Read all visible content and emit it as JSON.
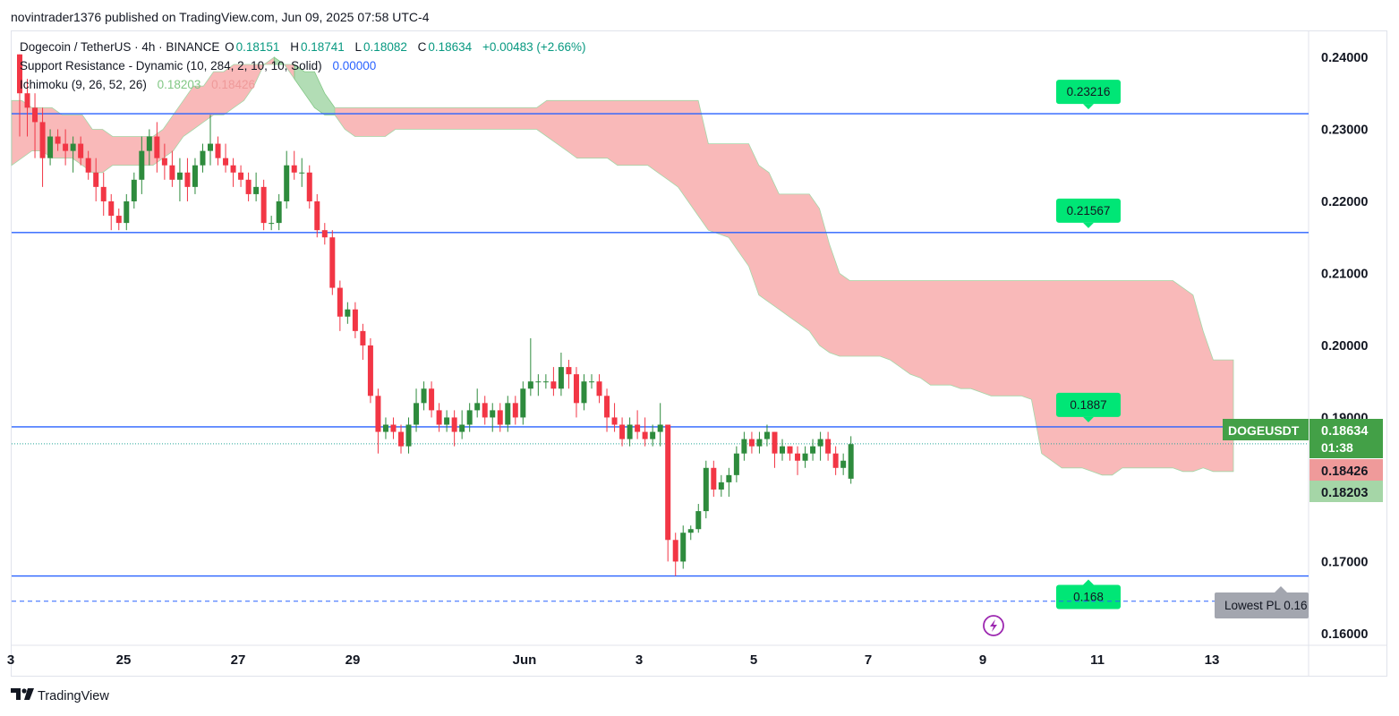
{
  "header": {
    "published_line": "novintrader1376 published on TradingView.com, Jun 09, 2025 07:58 UTC-4"
  },
  "legend": {
    "symbol_line": {
      "name": "Dogecoin / TetherUS · 4h · BINANCE",
      "o_label": "O",
      "o_value": "0.18151",
      "h_label": "H",
      "h_value": "0.18741",
      "l_label": "L",
      "l_value": "0.18082",
      "c_label": "C",
      "c_value": "0.18634",
      "change": "+0.00483 (+2.66%)"
    },
    "indicator1": {
      "name": "Support Resistance - Dynamic (10, 284, 2, 10, 10, Solid)",
      "value": "0.00000"
    },
    "indicator2": {
      "name": "Ichimoku (9, 26, 52, 26)",
      "value_a": "0.18203",
      "value_b": "0.18426"
    }
  },
  "footer": {
    "brand": "TradingView"
  },
  "colors": {
    "up": "#089981",
    "up_candle": "#26a69a",
    "down": "#f23645",
    "level_line": "#2962ff",
    "cloud_bear": "#f7a8a8",
    "cloud_bull": "#9fd4a3",
    "level_tag": "#00e676",
    "price_tag": "#43a047"
  },
  "chart_data": {
    "type": "candlestick",
    "symbol": "DOGEUSDT",
    "timeframe": "4h",
    "y_axis": {
      "ticks": [
        "0.24000",
        "0.23000",
        "0.22000",
        "0.21000",
        "0.20000",
        "0.19000",
        "0.17000",
        "0.16000"
      ],
      "ylim": [
        0.1585,
        0.2436
      ]
    },
    "x_axis": {
      "tick_labels": [
        "3",
        "25",
        "27",
        "29",
        "Jun",
        "3",
        "5",
        "7",
        "9",
        "11",
        "13"
      ]
    },
    "levels": [
      {
        "label": "0.23216",
        "value": 0.23216
      },
      {
        "label": "0.21567",
        "value": 0.21567
      },
      {
        "label": "0.1887",
        "value": 0.1887
      },
      {
        "label": "0.168",
        "value": 0.168
      }
    ],
    "dashed_level": {
      "value": 0.1645,
      "label": "Lowest PL 0.16"
    },
    "price_scale_tags": [
      {
        "label": "DOGEUSDT",
        "value": "0.18634",
        "countdown": "01:38"
      },
      {
        "label": "",
        "value": "0.18426"
      },
      {
        "label": "",
        "value": "0.18203"
      }
    ],
    "candles": [
      [
        0.2404,
        0.2404,
        0.229,
        0.235
      ],
      [
        0.235,
        0.237,
        0.229,
        0.233
      ],
      [
        0.233,
        0.235,
        0.226,
        0.231
      ],
      [
        0.231,
        0.233,
        0.222,
        0.226
      ],
      [
        0.226,
        0.23,
        0.225,
        0.229
      ],
      [
        0.229,
        0.23,
        0.227,
        0.228
      ],
      [
        0.228,
        0.23,
        0.225,
        0.227
      ],
      [
        0.227,
        0.229,
        0.224,
        0.228
      ],
      [
        0.228,
        0.229,
        0.225,
        0.226
      ],
      [
        0.226,
        0.227,
        0.223,
        0.224
      ],
      [
        0.224,
        0.226,
        0.22,
        0.222
      ],
      [
        0.222,
        0.224,
        0.218,
        0.22
      ],
      [
        0.22,
        0.221,
        0.216,
        0.218
      ],
      [
        0.218,
        0.219,
        0.216,
        0.217
      ],
      [
        0.217,
        0.221,
        0.216,
        0.22
      ],
      [
        0.22,
        0.224,
        0.219,
        0.223
      ],
      [
        0.223,
        0.229,
        0.221,
        0.227
      ],
      [
        0.227,
        0.23,
        0.225,
        0.229
      ],
      [
        0.229,
        0.231,
        0.224,
        0.226
      ],
      [
        0.226,
        0.228,
        0.223,
        0.225
      ],
      [
        0.225,
        0.227,
        0.222,
        0.223
      ],
      [
        0.223,
        0.226,
        0.22,
        0.224
      ],
      [
        0.224,
        0.226,
        0.22,
        0.222
      ],
      [
        0.222,
        0.226,
        0.221,
        0.225
      ],
      [
        0.225,
        0.228,
        0.224,
        0.227
      ],
      [
        0.227,
        0.232,
        0.225,
        0.228
      ],
      [
        0.228,
        0.229,
        0.225,
        0.226
      ],
      [
        0.226,
        0.228,
        0.224,
        0.225
      ],
      [
        0.225,
        0.226,
        0.222,
        0.224
      ],
      [
        0.224,
        0.225,
        0.222,
        0.223
      ],
      [
        0.223,
        0.224,
        0.22,
        0.221
      ],
      [
        0.221,
        0.224,
        0.22,
        0.222
      ],
      [
        0.222,
        0.223,
        0.216,
        0.217
      ],
      [
        0.217,
        0.218,
        0.216,
        0.217
      ],
      [
        0.217,
        0.221,
        0.216,
        0.22
      ],
      [
        0.22,
        0.227,
        0.219,
        0.225
      ],
      [
        0.225,
        0.227,
        0.223,
        0.224
      ],
      [
        0.224,
        0.226,
        0.222,
        0.224
      ],
      [
        0.224,
        0.225,
        0.219,
        0.22
      ],
      [
        0.22,
        0.221,
        0.215,
        0.216
      ],
      [
        0.216,
        0.217,
        0.214,
        0.215
      ],
      [
        0.215,
        0.216,
        0.207,
        0.208
      ],
      [
        0.208,
        0.209,
        0.202,
        0.204
      ],
      [
        0.204,
        0.206,
        0.203,
        0.205
      ],
      [
        0.205,
        0.206,
        0.201,
        0.202
      ],
      [
        0.202,
        0.203,
        0.198,
        0.2
      ],
      [
        0.2,
        0.201,
        0.192,
        0.193
      ],
      [
        0.193,
        0.194,
        0.185,
        0.188
      ],
      [
        0.188,
        0.19,
        0.187,
        0.189
      ],
      [
        0.189,
        0.19,
        0.187,
        0.188
      ],
      [
        0.188,
        0.189,
        0.185,
        0.186
      ],
      [
        0.186,
        0.19,
        0.185,
        0.189
      ],
      [
        0.189,
        0.194,
        0.188,
        0.192
      ],
      [
        0.192,
        0.195,
        0.191,
        0.194
      ],
      [
        0.194,
        0.195,
        0.19,
        0.191
      ],
      [
        0.191,
        0.192,
        0.188,
        0.189
      ],
      [
        0.189,
        0.191,
        0.188,
        0.19
      ],
      [
        0.19,
        0.191,
        0.186,
        0.188
      ],
      [
        0.188,
        0.191,
        0.187,
        0.189
      ],
      [
        0.189,
        0.192,
        0.188,
        0.191
      ],
      [
        0.191,
        0.194,
        0.19,
        0.192
      ],
      [
        0.192,
        0.193,
        0.189,
        0.19
      ],
      [
        0.19,
        0.192,
        0.188,
        0.191
      ],
      [
        0.191,
        0.192,
        0.188,
        0.189
      ],
      [
        0.189,
        0.193,
        0.188,
        0.192
      ],
      [
        0.192,
        0.193,
        0.189,
        0.19
      ],
      [
        0.19,
        0.195,
        0.189,
        0.194
      ],
      [
        0.194,
        0.201,
        0.193,
        0.195
      ],
      [
        0.195,
        0.196,
        0.193,
        0.195
      ],
      [
        0.195,
        0.196,
        0.194,
        0.195
      ],
      [
        0.195,
        0.197,
        0.193,
        0.194
      ],
      [
        0.194,
        0.199,
        0.193,
        0.197
      ],
      [
        0.197,
        0.198,
        0.194,
        0.196
      ],
      [
        0.196,
        0.197,
        0.19,
        0.192
      ],
      [
        0.192,
        0.196,
        0.191,
        0.195
      ],
      [
        0.195,
        0.196,
        0.194,
        0.195
      ],
      [
        0.195,
        0.196,
        0.192,
        0.193
      ],
      [
        0.193,
        0.194,
        0.188,
        0.19
      ],
      [
        0.19,
        0.192,
        0.188,
        0.189
      ],
      [
        0.189,
        0.19,
        0.186,
        0.187
      ],
      [
        0.187,
        0.19,
        0.186,
        0.189
      ],
      [
        0.189,
        0.191,
        0.187,
        0.188
      ],
      [
        0.188,
        0.19,
        0.186,
        0.187
      ],
      [
        0.187,
        0.189,
        0.186,
        0.188
      ],
      [
        0.188,
        0.192,
        0.186,
        0.189
      ],
      [
        0.189,
        0.189,
        0.17,
        0.173
      ],
      [
        0.173,
        0.174,
        0.168,
        0.17
      ],
      [
        0.17,
        0.175,
        0.169,
        0.174
      ],
      [
        0.174,
        0.175,
        0.173,
        0.1745
      ],
      [
        0.1745,
        0.178,
        0.174,
        0.177
      ],
      [
        0.177,
        0.184,
        0.176,
        0.183
      ],
      [
        0.183,
        0.184,
        0.179,
        0.18
      ],
      [
        0.18,
        0.182,
        0.179,
        0.181
      ],
      [
        0.181,
        0.183,
        0.179,
        0.182
      ],
      [
        0.182,
        0.186,
        0.181,
        0.185
      ],
      [
        0.185,
        0.188,
        0.184,
        0.187
      ],
      [
        0.187,
        0.188,
        0.185,
        0.186
      ],
      [
        0.186,
        0.188,
        0.185,
        0.187
      ],
      [
        0.187,
        0.189,
        0.186,
        0.188
      ],
      [
        0.188,
        0.188,
        0.183,
        0.185
      ],
      [
        0.185,
        0.187,
        0.184,
        0.186
      ],
      [
        0.186,
        0.186,
        0.184,
        0.185
      ],
      [
        0.185,
        0.186,
        0.182,
        0.184
      ],
      [
        0.184,
        0.186,
        0.183,
        0.185
      ],
      [
        0.185,
        0.187,
        0.184,
        0.186
      ],
      [
        0.186,
        0.188,
        0.184,
        0.187
      ],
      [
        0.187,
        0.188,
        0.184,
        0.185
      ],
      [
        0.185,
        0.186,
        0.182,
        0.183
      ],
      [
        0.183,
        0.185,
        0.182,
        0.184
      ],
      [
        0.1815,
        0.1874,
        0.1808,
        0.1863
      ]
    ],
    "cloud_top": [
      0.234,
      0.234,
      0.233,
      0.233,
      0.233,
      0.232,
      0.232,
      0.232,
      0.23,
      0.23,
      0.229,
      0.229,
      0.229,
      0.229,
      0.229,
      0.23,
      0.232,
      0.234,
      0.236,
      0.236,
      0.238,
      0.238,
      0.239,
      0.239,
      0.239,
      0.239,
      0.239,
      0.239,
      0.237,
      0.235,
      0.233,
      0.232,
      0.233,
      0.233,
      0.233,
      0.233,
      0.233,
      0.233,
      0.233,
      0.233,
      0.233,
      0.233,
      0.233,
      0.233,
      0.233,
      0.233,
      0.233,
      0.233,
      0.233,
      0.233,
      0.233,
      0.233,
      0.233,
      0.234,
      0.234,
      0.234,
      0.234,
      0.234,
      0.234,
      0.234,
      0.234,
      0.234,
      0.234,
      0.234,
      0.234,
      0.234,
      0.234,
      0.234,
      0.234,
      0.228,
      0.228,
      0.228,
      0.228,
      0.228,
      0.225,
      0.224,
      0.221,
      0.221,
      0.221,
      0.221,
      0.219,
      0.214,
      0.21,
      0.209,
      0.209,
      0.209,
      0.209,
      0.209,
      0.209,
      0.209,
      0.209,
      0.209,
      0.209,
      0.209,
      0.209,
      0.209,
      0.209,
      0.209,
      0.209,
      0.209,
      0.209,
      0.209,
      0.209,
      0.209,
      0.209,
      0.209,
      0.209,
      0.209,
      0.209,
      0.209,
      0.209,
      0.209,
      0.209,
      0.209,
      0.209,
      0.209,
      0.208,
      0.207,
      0.202,
      0.198,
      0.198,
      0.198,
      0.198,
      0.198,
      0.197,
      0.196,
      0.194,
      0.191,
      0.189,
      0.187,
      0.186,
      0.186,
      0.186,
      0.186,
      0.186,
      0.186
    ],
    "cloud_bottom": [
      0.225,
      0.226,
      0.227,
      0.227,
      0.226,
      0.226,
      0.226,
      0.225,
      0.224,
      0.224,
      0.225,
      0.225,
      0.225,
      0.225,
      0.225,
      0.226,
      0.227,
      0.229,
      0.23,
      0.231,
      0.232,
      0.232,
      0.233,
      0.234,
      0.236,
      0.239,
      0.24,
      0.239,
      0.239,
      0.238,
      0.238,
      0.235,
      0.232,
      0.23,
      0.229,
      0.229,
      0.229,
      0.229,
      0.23,
      0.23,
      0.23,
      0.23,
      0.23,
      0.23,
      0.23,
      0.23,
      0.23,
      0.23,
      0.23,
      0.23,
      0.23,
      0.23,
      0.23,
      0.229,
      0.228,
      0.227,
      0.226,
      0.226,
      0.226,
      0.226,
      0.225,
      0.225,
      0.225,
      0.225,
      0.224,
      0.223,
      0.222,
      0.22,
      0.218,
      0.216,
      0.2155,
      0.215,
      0.213,
      0.211,
      0.207,
      0.206,
      0.205,
      0.204,
      0.203,
      0.202,
      0.2,
      0.199,
      0.1985,
      0.1985,
      0.1985,
      0.1985,
      0.1985,
      0.198,
      0.197,
      0.196,
      0.1955,
      0.1945,
      0.1945,
      0.1945,
      0.194,
      0.194,
      0.1935,
      0.193,
      0.193,
      0.193,
      0.193,
      0.1925,
      0.185,
      0.184,
      0.183,
      0.183,
      0.183,
      0.1825,
      0.182,
      0.182,
      0.183,
      0.183,
      0.183,
      0.183,
      0.183,
      0.183,
      0.1825,
      0.1825,
      0.183,
      0.1825,
      0.1825,
      0.1825
    ]
  }
}
